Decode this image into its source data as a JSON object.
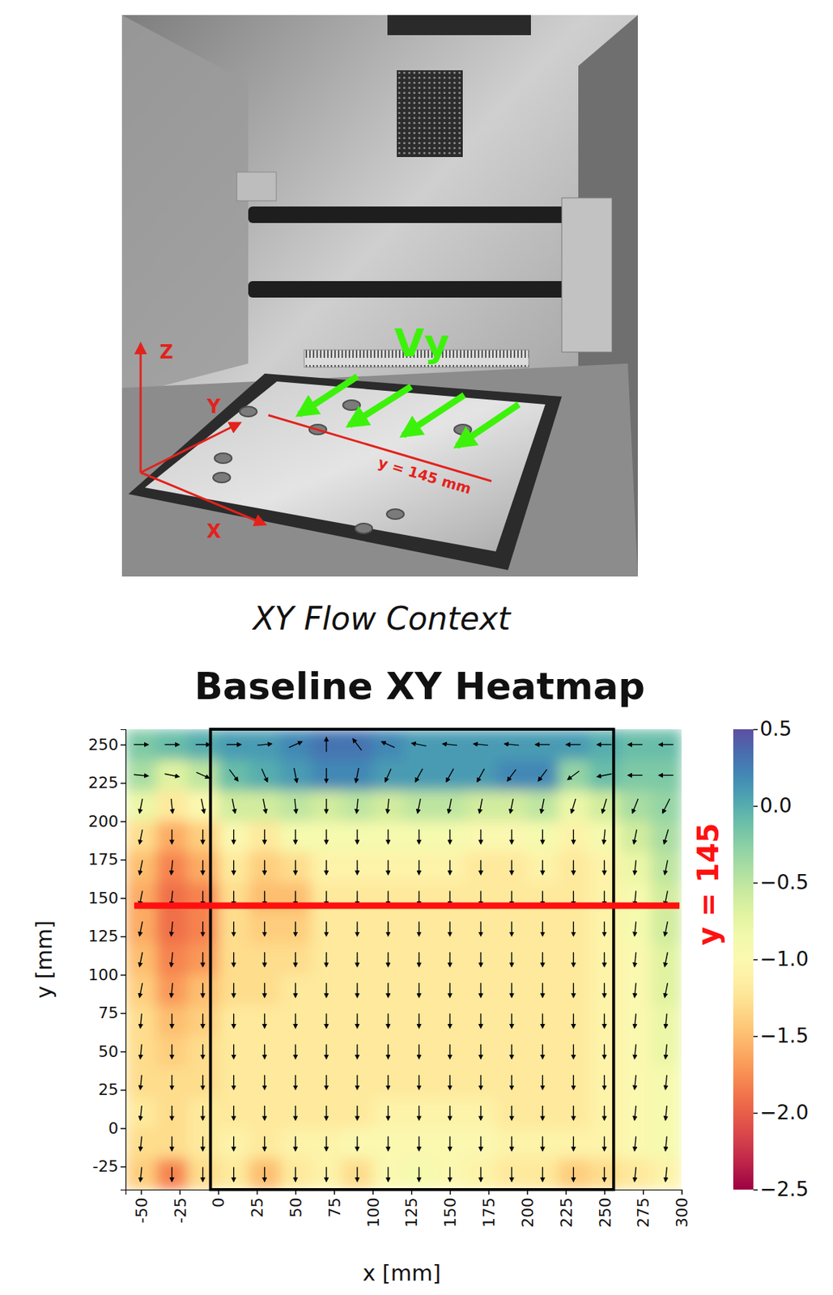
{
  "figure": {
    "photo_labels": {
      "z": "Z",
      "y": "Y",
      "x": "X",
      "flow": "Vy",
      "line": "y = 145 mm"
    },
    "caption": "XY Flow Context"
  },
  "chart_data": {
    "type": "heatmap",
    "title": "Baseline XY Heatmap",
    "x_label": "x [mm]",
    "y_label": "y [mm]",
    "xlim": [
      -60,
      300
    ],
    "ylim": [
      -40,
      260
    ],
    "xticks": [
      -50,
      -25,
      0,
      25,
      50,
      75,
      100,
      125,
      150,
      175,
      200,
      225,
      250,
      275,
      300
    ],
    "yticks": [
      -25,
      0,
      25,
      50,
      75,
      100,
      125,
      150,
      175,
      200,
      225,
      250
    ],
    "color": "Spectral",
    "x": [
      -50,
      -30,
      -10,
      10,
      30,
      50,
      70,
      90,
      110,
      130,
      150,
      170,
      190,
      210,
      230,
      250,
      270,
      290
    ],
    "y": [
      250,
      230,
      210,
      190,
      170,
      150,
      130,
      110,
      90,
      70,
      50,
      30,
      10,
      -10,
      -30
    ],
    "values": [
      [
        -0.2,
        -0.1,
        0.0,
        0.1,
        0.1,
        0.2,
        0.3,
        0.3,
        0.2,
        0.1,
        0.1,
        0.1,
        0.1,
        0.1,
        0.1,
        0.0,
        -0.1,
        -0.1
      ],
      [
        -0.4,
        -0.7,
        -0.5,
        -0.1,
        0.0,
        0.1,
        0.2,
        0.2,
        0.1,
        0.1,
        0.1,
        0.1,
        0.2,
        0.2,
        -0.3,
        -0.1,
        -0.2,
        -0.2
      ],
      [
        -0.8,
        -1.2,
        -1.0,
        -0.6,
        -0.6,
        -0.5,
        -0.6,
        -0.5,
        -0.6,
        -0.5,
        -0.5,
        -0.6,
        -0.6,
        -0.5,
        -0.8,
        -0.6,
        -0.4,
        -0.3
      ],
      [
        -1.3,
        -1.6,
        -1.4,
        -1.0,
        -1.2,
        -0.9,
        -0.9,
        -0.9,
        -0.9,
        -0.9,
        -0.9,
        -1.0,
        -1.0,
        -0.9,
        -1.1,
        -0.9,
        -0.6,
        -0.4
      ],
      [
        -1.5,
        -1.8,
        -1.6,
        -1.2,
        -1.4,
        -1.3,
        -1.1,
        -1.1,
        -1.1,
        -1.1,
        -1.1,
        -1.2,
        -1.2,
        -1.1,
        -1.2,
        -1.1,
        -0.8,
        -0.5
      ],
      [
        -1.6,
        -1.9,
        -1.8,
        -1.3,
        -1.5,
        -1.5,
        -1.2,
        -1.2,
        -1.2,
        -1.2,
        -1.2,
        -1.2,
        -1.2,
        -1.2,
        -1.2,
        -1.1,
        -0.9,
        -0.6
      ],
      [
        -1.6,
        -1.9,
        -1.8,
        -1.3,
        -1.4,
        -1.4,
        -1.2,
        -1.2,
        -1.2,
        -1.2,
        -1.2,
        -1.2,
        -1.2,
        -1.2,
        -1.2,
        -1.1,
        -0.9,
        -0.6
      ],
      [
        -1.5,
        -1.8,
        -1.7,
        -1.3,
        -1.3,
        -1.3,
        -1.2,
        -1.2,
        -1.2,
        -1.2,
        -1.2,
        -1.2,
        -1.2,
        -1.2,
        -1.2,
        -1.1,
        -1.0,
        -0.7
      ],
      [
        -1.4,
        -1.7,
        -1.5,
        -1.3,
        -1.3,
        -1.2,
        -1.2,
        -1.2,
        -1.2,
        -1.2,
        -1.2,
        -1.2,
        -1.2,
        -1.2,
        -1.2,
        -1.1,
        -1.0,
        -0.7
      ],
      [
        -1.3,
        -1.5,
        -1.4,
        -1.2,
        -1.2,
        -1.2,
        -1.2,
        -1.2,
        -1.2,
        -1.2,
        -1.2,
        -1.2,
        -1.2,
        -1.2,
        -1.2,
        -1.1,
        -1.0,
        -0.8
      ],
      [
        -1.3,
        -1.4,
        -1.3,
        -1.2,
        -1.2,
        -1.2,
        -1.2,
        -1.2,
        -1.2,
        -1.2,
        -1.2,
        -1.2,
        -1.2,
        -1.2,
        -1.2,
        -1.1,
        -1.0,
        -0.8
      ],
      [
        -1.3,
        -1.3,
        -1.3,
        -1.2,
        -1.2,
        -1.2,
        -1.2,
        -1.2,
        -1.2,
        -1.2,
        -1.2,
        -1.2,
        -1.2,
        -1.2,
        -1.2,
        -1.1,
        -1.0,
        -0.9
      ],
      [
        -1.2,
        -1.3,
        -1.2,
        -1.2,
        -1.2,
        -1.2,
        -1.2,
        -1.2,
        -1.1,
        -1.1,
        -1.1,
        -1.1,
        -1.2,
        -1.2,
        -1.2,
        -1.1,
        -1.0,
        -0.9
      ],
      [
        -1.3,
        -1.3,
        -1.2,
        -1.1,
        -1.2,
        -1.1,
        -1.1,
        -1.0,
        -1.0,
        -1.0,
        -1.0,
        -1.0,
        -1.1,
        -1.1,
        -1.1,
        -1.1,
        -1.0,
        -0.9
      ],
      [
        -1.4,
        -1.8,
        -1.3,
        -1.2,
        -1.5,
        -1.2,
        -1.1,
        -1.3,
        -1.0,
        -0.9,
        -1.0,
        -1.1,
        -1.2,
        -1.2,
        -1.4,
        -1.3,
        -1.2,
        -1.1
      ]
    ],
    "vectors": {
      "u": [
        [
          1,
          1,
          1,
          1,
          1,
          0.9,
          0,
          -0.6,
          -0.9,
          -1,
          -1,
          -1,
          -1,
          -1,
          -1,
          -1,
          -1,
          -1
        ],
        [
          1,
          1,
          0.9,
          0.6,
          0.4,
          0.2,
          0,
          -0.2,
          -0.4,
          -0.5,
          -0.5,
          -0.5,
          -0.6,
          -0.6,
          -0.8,
          -1,
          -1,
          -1
        ],
        [
          -0.2,
          0.1,
          0.2,
          0.2,
          0.2,
          0.1,
          0,
          -0.1,
          -0.1,
          -0.2,
          -0.2,
          -0.2,
          -0.2,
          -0.2,
          -0.3,
          -0.3,
          -0.4,
          -0.5
        ],
        [
          -0.2,
          0,
          0,
          0,
          0,
          0,
          0,
          0,
          0,
          0,
          0,
          0,
          0,
          0,
          0,
          -0.1,
          -0.2,
          -0.3
        ],
        [
          -0.2,
          -0.1,
          0,
          0,
          0,
          0,
          0,
          0,
          0,
          0,
          0,
          0,
          0,
          0,
          0,
          0,
          -0.1,
          -0.2
        ],
        [
          -0.2,
          -0.1,
          0,
          0,
          0,
          0,
          0,
          0,
          0,
          0,
          0,
          0,
          0,
          0,
          0,
          0,
          -0.1,
          -0.2
        ],
        [
          -0.2,
          -0.1,
          0,
          0,
          0,
          0,
          0,
          0,
          0,
          0,
          0,
          0,
          0,
          0,
          0,
          0,
          -0.1,
          -0.2
        ],
        [
          -0.2,
          -0.1,
          0,
          0,
          0,
          0,
          0,
          0,
          0,
          0,
          0,
          0,
          0,
          0,
          0,
          0,
          -0.1,
          -0.2
        ],
        [
          -0.2,
          -0.1,
          0,
          0,
          0,
          0,
          0,
          0,
          0,
          0,
          0,
          0,
          0,
          0,
          0,
          0,
          -0.1,
          -0.2
        ],
        [
          -0.1,
          0,
          0,
          0,
          0,
          0,
          0,
          0,
          0,
          0,
          0,
          0,
          0,
          0,
          0,
          0,
          -0.1,
          -0.1
        ],
        [
          -0.1,
          0,
          0,
          0,
          0,
          0,
          0,
          0,
          0,
          0,
          0,
          0,
          0,
          0,
          0,
          0,
          -0.1,
          -0.1
        ],
        [
          -0.1,
          0,
          0,
          0,
          0,
          0,
          0,
          0,
          0,
          0,
          0,
          0,
          0,
          0,
          0,
          0,
          -0.1,
          -0.1
        ],
        [
          -0.1,
          0,
          0,
          0,
          0,
          0,
          0,
          0,
          0,
          0,
          0,
          0,
          0,
          0,
          0,
          0,
          -0.1,
          -0.1
        ],
        [
          -0.1,
          0,
          0,
          0,
          0,
          0,
          0,
          0,
          0,
          0,
          0,
          0,
          0,
          0,
          0,
          0,
          -0.1,
          -0.1
        ],
        [
          -0.1,
          0,
          0,
          0,
          0,
          0,
          0,
          0,
          0,
          0,
          0,
          0,
          0,
          0,
          0,
          0,
          -0.1,
          -0.1
        ]
      ],
      "v": [
        [
          0,
          0,
          0,
          0,
          0.1,
          0.4,
          1,
          0.8,
          0.4,
          0.2,
          0.1,
          0.1,
          0.1,
          0,
          0,
          0,
          0,
          0
        ],
        [
          -0.1,
          -0.2,
          -0.4,
          -0.8,
          -0.9,
          -1,
          -1,
          -1,
          -0.9,
          -0.9,
          -0.9,
          -0.9,
          -0.8,
          -0.8,
          -0.6,
          -0.2,
          0,
          0
        ],
        [
          -1,
          -1,
          -1,
          -1,
          -1,
          -1,
          -1,
          -1,
          -1,
          -1,
          -1,
          -1,
          -1,
          -1,
          -1,
          -1,
          -1,
          -1
        ],
        [
          -1,
          -1,
          -1,
          -1,
          -1,
          -1,
          -1,
          -1,
          -1,
          -1,
          -1,
          -1,
          -1,
          -1,
          -1,
          -1,
          -1,
          -1
        ],
        [
          -1,
          -1,
          -1,
          -1,
          -1,
          -1,
          -1,
          -1,
          -1,
          -1,
          -1,
          -1,
          -1,
          -1,
          -1,
          -1,
          -1,
          -1
        ],
        [
          -1,
          -1,
          -1,
          -1,
          -1,
          -1,
          -1,
          -1,
          -1,
          -1,
          -1,
          -1,
          -1,
          -1,
          -1,
          -1,
          -1,
          -1
        ],
        [
          -1,
          -1,
          -1,
          -1,
          -1,
          -1,
          -1,
          -1,
          -1,
          -1,
          -1,
          -1,
          -1,
          -1,
          -1,
          -1,
          -1,
          -1
        ],
        [
          -1,
          -1,
          -1,
          -1,
          -1,
          -1,
          -1,
          -1,
          -1,
          -1,
          -1,
          -1,
          -1,
          -1,
          -1,
          -1,
          -1,
          -1
        ],
        [
          -1,
          -1,
          -1,
          -1,
          -1,
          -1,
          -1,
          -1,
          -1,
          -1,
          -1,
          -1,
          -1,
          -1,
          -1,
          -1,
          -1,
          -1
        ],
        [
          -1,
          -1,
          -1,
          -1,
          -1,
          -1,
          -1,
          -1,
          -1,
          -1,
          -1,
          -1,
          -1,
          -1,
          -1,
          -1,
          -1,
          -1
        ],
        [
          -1,
          -1,
          -1,
          -1,
          -1,
          -1,
          -1,
          -1,
          -1,
          -1,
          -1,
          -1,
          -1,
          -1,
          -1,
          -1,
          -1,
          -1
        ],
        [
          -1,
          -1,
          -1,
          -1,
          -1,
          -1,
          -1,
          -1,
          -1,
          -1,
          -1,
          -1,
          -1,
          -1,
          -1,
          -1,
          -1,
          -1
        ],
        [
          -1,
          -1,
          -1,
          -1,
          -1,
          -1,
          -1,
          -1,
          -1,
          -1,
          -1,
          -1,
          -1,
          -1,
          -1,
          -1,
          -1,
          -1
        ],
        [
          -1,
          -1,
          -1,
          -1,
          -1,
          -1,
          -1,
          -1,
          -1,
          -1,
          -1,
          -1,
          -1,
          -1,
          -1,
          -1,
          -1,
          -1
        ],
        [
          -1,
          -1,
          -1,
          -1,
          -1,
          -1,
          -1,
          -1,
          -1,
          -1,
          -1,
          -1,
          -1,
          -1,
          -1,
          -1,
          -1,
          -1
        ]
      ]
    },
    "colorbar": {
      "range": [
        -2.5,
        0.5
      ],
      "ticks": [
        0.5,
        {
          "value": 0,
          "label": "0.0"
        },
        {
          "value": -0.5,
          "label": "−0.5"
        },
        {
          "value": -1,
          "label": "−1.0"
        },
        {
          "value": -1.5,
          "label": "−1.5"
        },
        {
          "value": -2,
          "label": "−2.0"
        },
        {
          "value": -2.5,
          "label": "−2.5"
        }
      ]
    },
    "outline": {
      "x": [
        -5,
        256
      ]
    },
    "annotations": [
      {
        "text": "y = 145",
        "y": 145
      }
    ]
  }
}
